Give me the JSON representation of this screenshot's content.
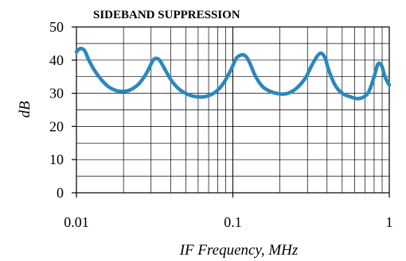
{
  "chart_data": {
    "type": "line",
    "title": "SIDEBAND SUPPRESSION",
    "xlabel": "IF Frequency, MHz",
    "ylabel": "dB",
    "x_scale": "log",
    "xlim": [
      0.01,
      1
    ],
    "ylim": [
      0,
      50
    ],
    "grid": true,
    "x_ticks": [
      {
        "value": 0.01,
        "label": "0.01"
      },
      {
        "value": 0.1,
        "label": "0.1"
      },
      {
        "value": 1,
        "label": "1"
      }
    ],
    "y_ticks": [
      {
        "value": 0,
        "label": "0"
      },
      {
        "value": 10,
        "label": "10"
      },
      {
        "value": 20,
        "label": "20"
      },
      {
        "value": 30,
        "label": "30"
      },
      {
        "value": 40,
        "label": "40"
      },
      {
        "value": 50,
        "label": "50"
      }
    ],
    "line_color": "#2b87bf",
    "series": [
      {
        "x": [
          0.01,
          0.0106,
          0.0113,
          0.012,
          0.013,
          0.0145,
          0.016,
          0.018,
          0.02,
          0.022,
          0.025,
          0.028,
          0.0305,
          0.032,
          0.034,
          0.037,
          0.041,
          0.046,
          0.052,
          0.058,
          0.064,
          0.07,
          0.078,
          0.087,
          0.097,
          0.105,
          0.112,
          0.118,
          0.124,
          0.13,
          0.14,
          0.155,
          0.175,
          0.2,
          0.225,
          0.255,
          0.29,
          0.32,
          0.35,
          0.37,
          0.39,
          0.41,
          0.45,
          0.5,
          0.56,
          0.62,
          0.68,
          0.74,
          0.8,
          0.84,
          0.87,
          0.9,
          0.93,
          0.96,
          0.985,
          1.0
        ],
        "y": [
          42.5,
          43.5,
          42.8,
          40.0,
          37.0,
          34.0,
          32.0,
          30.8,
          30.6,
          31.0,
          32.8,
          36.0,
          39.5,
          40.5,
          40.0,
          37.0,
          33.5,
          31.0,
          29.6,
          29.0,
          28.9,
          29.3,
          30.5,
          33.0,
          37.0,
          40.5,
          41.5,
          41.5,
          40.5,
          38.5,
          35.0,
          32.0,
          30.5,
          29.8,
          30.0,
          31.5,
          34.5,
          38.5,
          41.5,
          42.0,
          40.5,
          37.0,
          32.5,
          30.0,
          29.0,
          28.4,
          28.8,
          30.5,
          35.0,
          38.5,
          39.0,
          38.0,
          35.5,
          34.0,
          33.0,
          32.5
        ]
      }
    ]
  }
}
